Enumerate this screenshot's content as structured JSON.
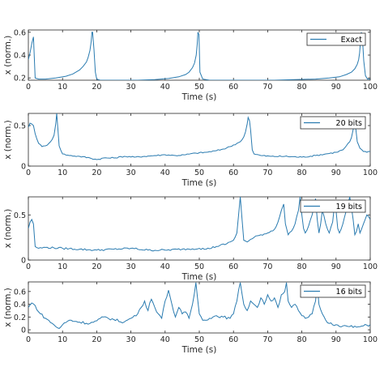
{
  "colors": {
    "series": "#2a7bb0",
    "axis": "#262626",
    "background": "#ffffff"
  },
  "chart_data": [
    {
      "type": "line",
      "xlabel": "Time (s)",
      "ylabel": "x (norm.)",
      "xlim": [
        0,
        100
      ],
      "ylim": [
        0.18,
        0.62
      ],
      "xticks": [
        0,
        10,
        20,
        30,
        40,
        50,
        60,
        70,
        80,
        90,
        100
      ],
      "yticks": [
        0.2,
        0.4,
        0.6
      ],
      "ytick_labels": [
        "0.2",
        "0.4",
        "0.6"
      ],
      "legend_position": "top-right",
      "series": [
        {
          "name": "Exact",
          "x": [
            0,
            0.5,
            1,
            1.5,
            2,
            3,
            5,
            8,
            11,
            13,
            15,
            16,
            17,
            17.5,
            18,
            18.4,
            18.6,
            18.8,
            19.2,
            19.6,
            20,
            21,
            23,
            27,
            32,
            37,
            41,
            44,
            46,
            47,
            48,
            48.6,
            49.1,
            49.4,
            49.6,
            49.9,
            50.2,
            51,
            53,
            58,
            65,
            72,
            78,
            84,
            88,
            91,
            93,
            94.5,
            95.5,
            96.2,
            96.6,
            96.9,
            97.1,
            97.4,
            97.7,
            98.1,
            98.6,
            99.2,
            100
          ],
          "y": [
            0.36,
            0.42,
            0.5,
            0.56,
            0.2,
            0.19,
            0.19,
            0.2,
            0.215,
            0.235,
            0.27,
            0.3,
            0.34,
            0.38,
            0.44,
            0.52,
            0.6,
            0.6,
            0.45,
            0.25,
            0.19,
            0.18,
            0.18,
            0.18,
            0.18,
            0.185,
            0.195,
            0.21,
            0.23,
            0.25,
            0.29,
            0.33,
            0.4,
            0.5,
            0.6,
            0.58,
            0.25,
            0.19,
            0.18,
            0.18,
            0.18,
            0.18,
            0.185,
            0.19,
            0.2,
            0.21,
            0.23,
            0.25,
            0.28,
            0.32,
            0.36,
            0.42,
            0.5,
            0.6,
            0.56,
            0.35,
            0.22,
            0.19,
            0.19
          ]
        }
      ]
    },
    {
      "type": "line",
      "xlabel": "Time (s)",
      "ylabel": "x (norm.)",
      "xlim": [
        0,
        100
      ],
      "ylim": [
        0,
        0.65
      ],
      "xticks": [
        0,
        10,
        20,
        30,
        40,
        50,
        60,
        70,
        80,
        90,
        100
      ],
      "yticks": [
        0,
        0.5
      ],
      "ytick_labels": [
        "0",
        "0.5"
      ],
      "legend_position": "top-right",
      "series": [
        {
          "name": "20 bits",
          "x": [
            0,
            0.5,
            1,
            1.5,
            2,
            3,
            4,
            5,
            6,
            7,
            7.5,
            8,
            8.3,
            8.6,
            9,
            10,
            12,
            15,
            18,
            20,
            22,
            25,
            28,
            31,
            34,
            37,
            40,
            43,
            46,
            49,
            52,
            55,
            57,
            59,
            61,
            62,
            63,
            63.5,
            64,
            64.3,
            64.7,
            65,
            65.5,
            66,
            68,
            71,
            75,
            80,
            84,
            87,
            90,
            92,
            93,
            94,
            94.5,
            95,
            95.4,
            95.8,
            96.2,
            97,
            98,
            99,
            100
          ],
          "y": [
            0.48,
            0.53,
            0.52,
            0.5,
            0.4,
            0.28,
            0.24,
            0.25,
            0.28,
            0.33,
            0.38,
            0.52,
            0.65,
            0.48,
            0.25,
            0.15,
            0.13,
            0.12,
            0.1,
            0.08,
            0.1,
            0.1,
            0.12,
            0.11,
            0.12,
            0.13,
            0.14,
            0.13,
            0.14,
            0.16,
            0.17,
            0.19,
            0.21,
            0.24,
            0.28,
            0.3,
            0.36,
            0.42,
            0.52,
            0.6,
            0.56,
            0.45,
            0.2,
            0.15,
            0.13,
            0.12,
            0.12,
            0.11,
            0.13,
            0.15,
            0.17,
            0.2,
            0.25,
            0.3,
            0.35,
            0.45,
            0.52,
            0.45,
            0.3,
            0.22,
            0.18,
            0.17,
            0.18
          ]
        }
      ]
    },
    {
      "type": "line",
      "xlabel": "Time (s)",
      "ylabel": "x (norm.)",
      "xlim": [
        0,
        100
      ],
      "ylim": [
        0,
        0.7
      ],
      "xticks": [
        0,
        10,
        20,
        30,
        40,
        50,
        60,
        70,
        80,
        90,
        100
      ],
      "yticks": [
        0,
        0.5
      ],
      "ytick_labels": [
        "0",
        "0.5"
      ],
      "legend_position": "top-right",
      "series": [
        {
          "name": "19 bits",
          "x": [
            0,
            0.5,
            1,
            1.5,
            2,
            3,
            5,
            10,
            15,
            20,
            25,
            30,
            35,
            40,
            45,
            50,
            52,
            55,
            58,
            60,
            61,
            61.5,
            62,
            62.5,
            63,
            64,
            66,
            68,
            70,
            72,
            73,
            74,
            74.7,
            75.2,
            76,
            77,
            78,
            79,
            79.5,
            80,
            80.5,
            81,
            82,
            83,
            84,
            84.5,
            85,
            85.5,
            86,
            87,
            88,
            89,
            89.7,
            90,
            90.5,
            91,
            92,
            93,
            94,
            95,
            95.5,
            96,
            96.5,
            97,
            98,
            99,
            100
          ],
          "y": [
            0.35,
            0.42,
            0.45,
            0.4,
            0.15,
            0.13,
            0.14,
            0.13,
            0.12,
            0.11,
            0.12,
            0.13,
            0.11,
            0.11,
            0.12,
            0.13,
            0.12,
            0.15,
            0.18,
            0.22,
            0.3,
            0.5,
            0.7,
            0.45,
            0.22,
            0.2,
            0.25,
            0.28,
            0.3,
            0.34,
            0.42,
            0.55,
            0.62,
            0.4,
            0.28,
            0.32,
            0.4,
            0.55,
            0.7,
            0.5,
            0.35,
            0.3,
            0.38,
            0.5,
            0.68,
            0.45,
            0.3,
            0.4,
            0.55,
            0.4,
            0.3,
            0.42,
            0.66,
            0.55,
            0.35,
            0.3,
            0.4,
            0.55,
            0.7,
            0.45,
            0.28,
            0.32,
            0.4,
            0.3,
            0.4,
            0.5,
            0.45
          ]
        }
      ]
    },
    {
      "type": "line",
      "xlabel": "Time (s)",
      "ylabel": "x (norm.)",
      "xlim": [
        0,
        100
      ],
      "ylim": [
        -0.05,
        0.75
      ],
      "xticks": [
        0,
        10,
        20,
        30,
        40,
        50,
        60,
        70,
        80,
        90,
        100
      ],
      "yticks": [
        0,
        0.2,
        0.4,
        0.6
      ],
      "ytick_labels": [
        "0",
        "0.2",
        "0.4",
        "0.6"
      ],
      "legend_position": "top-right",
      "series": [
        {
          "name": "16 bits",
          "x": [
            0,
            1,
            2,
            3,
            5,
            7,
            8,
            9,
            10,
            12,
            15,
            18,
            20,
            22,
            25,
            28,
            30,
            32,
            33,
            34,
            35,
            35.5,
            36,
            37,
            38,
            39,
            40,
            41,
            42,
            43,
            44,
            45,
            46,
            47,
            48,
            48.5,
            49,
            50,
            51,
            53,
            55,
            57,
            59,
            60,
            61,
            61.5,
            62,
            63,
            64,
            65,
            66,
            67,
            68,
            69,
            70,
            71,
            72,
            73,
            74,
            75,
            75.5,
            76,
            77,
            78,
            79,
            80,
            81,
            82,
            83,
            84,
            84.5,
            85,
            86,
            87,
            88,
            90,
            92,
            94,
            96,
            98,
            100
          ],
          "y": [
            0.35,
            0.42,
            0.38,
            0.28,
            0.18,
            0.1,
            0.05,
            0.02,
            0.08,
            0.15,
            0.12,
            0.1,
            0.14,
            0.2,
            0.16,
            0.12,
            0.18,
            0.25,
            0.35,
            0.45,
            0.3,
            0.42,
            0.48,
            0.35,
            0.25,
            0.18,
            0.45,
            0.62,
            0.4,
            0.2,
            0.35,
            0.25,
            0.28,
            0.18,
            0.4,
            0.55,
            0.74,
            0.25,
            0.15,
            0.18,
            0.22,
            0.2,
            0.18,
            0.25,
            0.45,
            0.62,
            0.74,
            0.4,
            0.3,
            0.45,
            0.4,
            0.35,
            0.5,
            0.4,
            0.55,
            0.45,
            0.5,
            0.35,
            0.55,
            0.6,
            0.74,
            0.45,
            0.35,
            0.4,
            0.3,
            0.22,
            0.18,
            0.2,
            0.25,
            0.45,
            0.7,
            0.4,
            0.25,
            0.15,
            0.1,
            0.08,
            0.06,
            0.05,
            0.04,
            0.06,
            0.08
          ]
        }
      ]
    }
  ]
}
